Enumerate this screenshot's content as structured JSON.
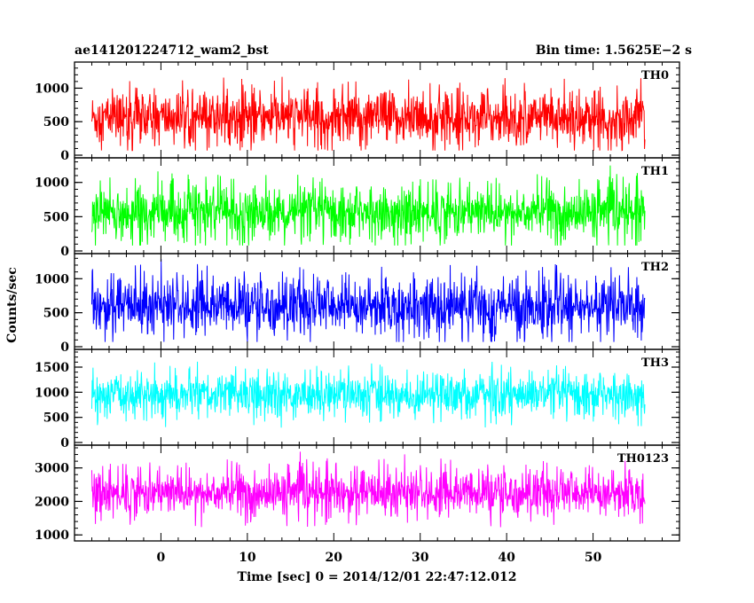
{
  "chart_data": {
    "type": "line",
    "title_left": "ae141201224712_wam2_bst",
    "title_right": "Bin time: 1.5625E−2 s",
    "xlabel": "Time [sec] 0 = 2014/12/01 22:47:12.012",
    "ylabel": "Counts/sec",
    "xlim": [
      -10,
      60
    ],
    "x_data_range": [
      -8,
      56
    ],
    "xticks": [
      0,
      10,
      20,
      30,
      40,
      50
    ],
    "x_minor_step": 2,
    "grid": false,
    "panels": [
      {
        "name": "TH0",
        "color": "#ff0000",
        "ylim": [
          0,
          1350
        ],
        "yticks": [
          0,
          500,
          1000
        ],
        "y_minor_step": 100,
        "mean": 560,
        "spread": 300,
        "min": 70,
        "max": 1350
      },
      {
        "name": "TH1",
        "color": "#00ff00",
        "ylim": [
          0,
          1320
        ],
        "yticks": [
          0,
          500,
          1000
        ],
        "y_minor_step": 100,
        "mean": 560,
        "spread": 290,
        "min": 80,
        "max": 1320
      },
      {
        "name": "TH2",
        "color": "#0000ff",
        "ylim": [
          0,
          1330
        ],
        "yticks": [
          0,
          500,
          1000
        ],
        "y_minor_step": 100,
        "mean": 600,
        "spread": 310,
        "min": 70,
        "max": 1330
      },
      {
        "name": "TH3",
        "color": "#00ffff",
        "ylim": [
          0,
          1800
        ],
        "yticks": [
          0,
          500,
          1000,
          1500
        ],
        "y_minor_step": 100,
        "mean": 950,
        "spread": 330,
        "min": 150,
        "max": 1800
      },
      {
        "name": "TH0123",
        "color": "#ff00ff",
        "ylim": [
          900,
          3600
        ],
        "yticks": [
          1000,
          2000,
          3000
        ],
        "y_minor_step": 200,
        "mean": 2250,
        "spread": 520,
        "min": 1000,
        "max": 3600
      }
    ]
  }
}
